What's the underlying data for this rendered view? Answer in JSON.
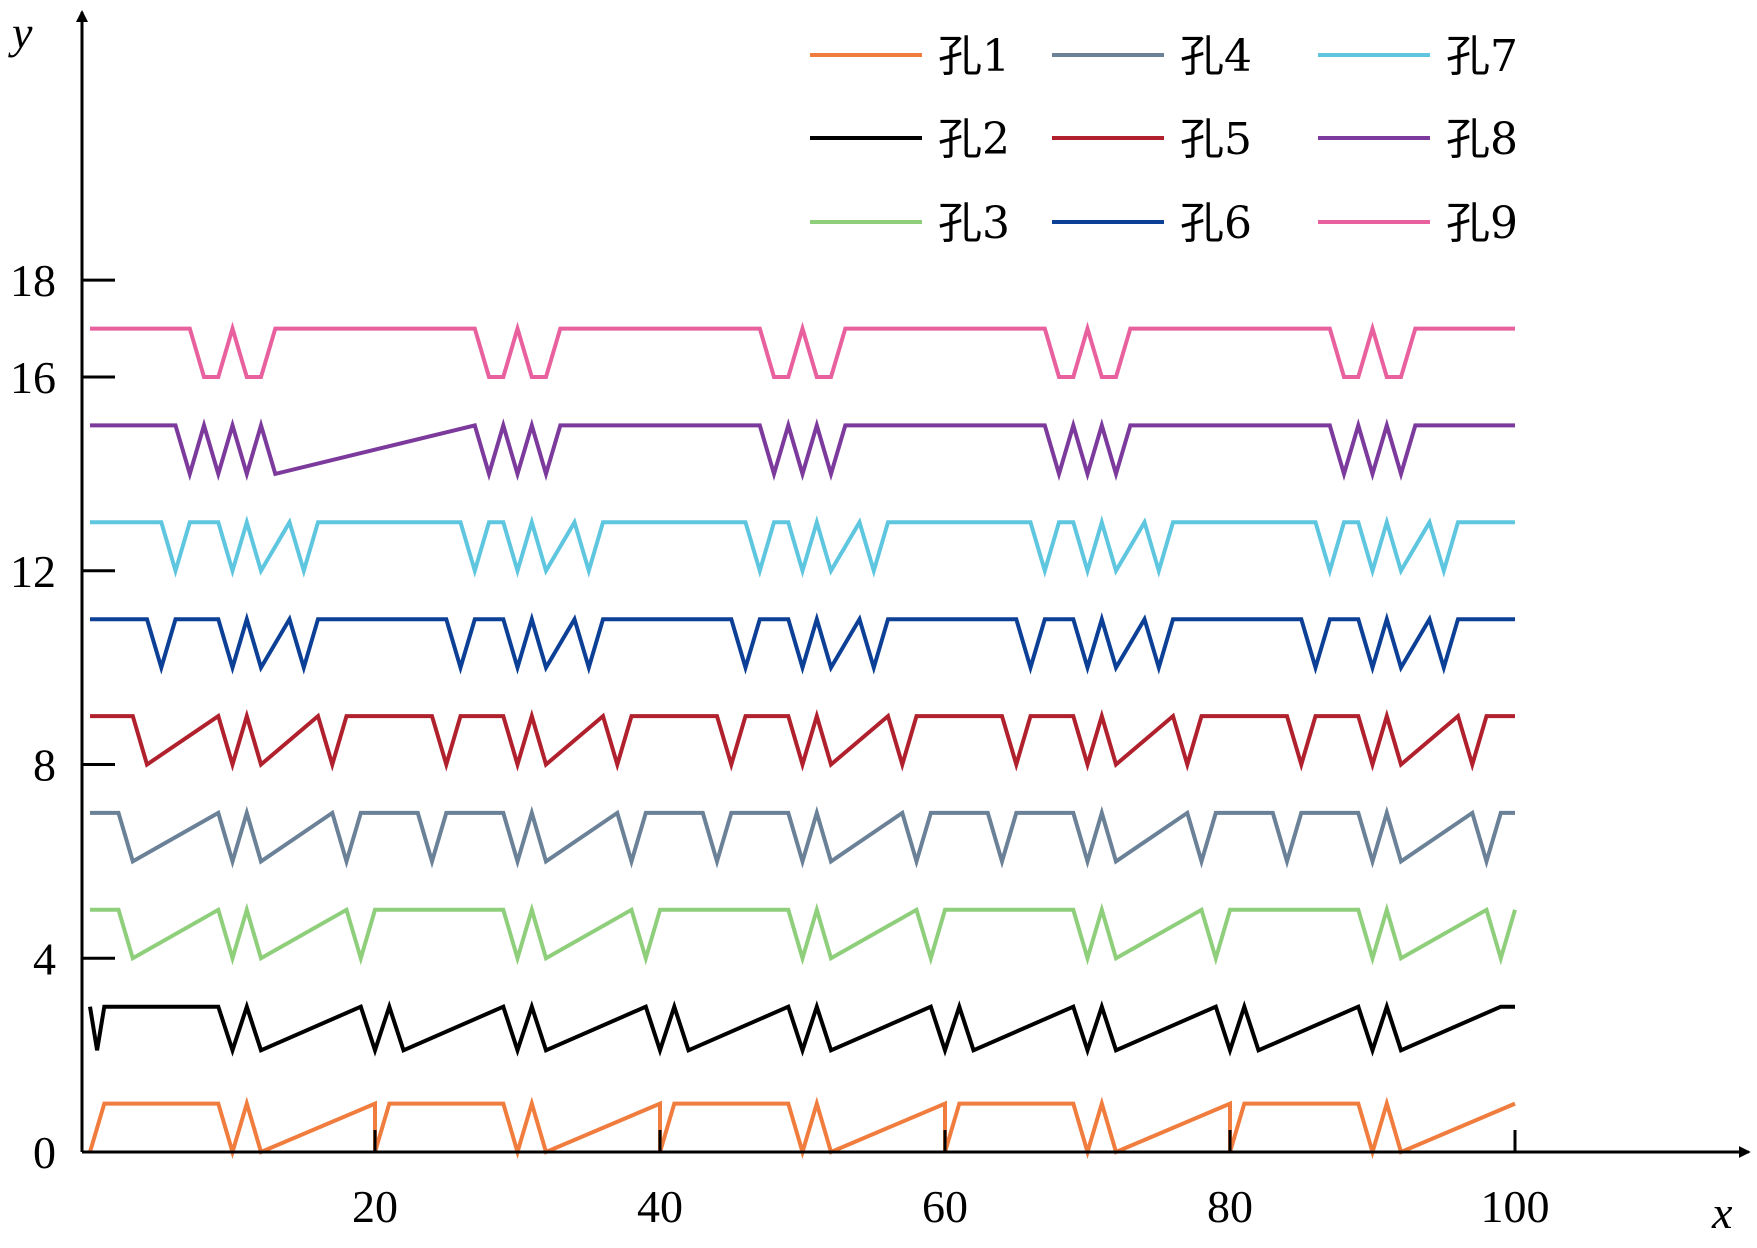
{
  "chart_data": {
    "type": "line",
    "title": "",
    "xlabel": "x",
    "ylabel": "y",
    "xlim": [
      0,
      115
    ],
    "ylim": [
      0,
      21
    ],
    "x_ticks": [
      20,
      40,
      60,
      80,
      100
    ],
    "y_ticks": [
      0,
      4,
      8,
      12,
      16,
      18
    ],
    "x_tick_labels": [
      "20",
      "40",
      "60",
      "80",
      "100"
    ],
    "y_tick_labels": [
      "0",
      "4",
      "8",
      "12",
      "16",
      "18"
    ],
    "grid": false,
    "legend_position": "top-right",
    "series": [
      {
        "name": "孔1",
        "color": "#f07c3e",
        "x": [
          0,
          1,
          9,
          10,
          11,
          12,
          20,
          20,
          21,
          29,
          30,
          31,
          32,
          40,
          40,
          41,
          49,
          50,
          51,
          52,
          60,
          60,
          61,
          69,
          70,
          71,
          72,
          80,
          80,
          81,
          89,
          90,
          91,
          92,
          100
        ],
        "y": [
          0,
          1,
          1,
          0,
          1,
          0,
          1,
          0,
          1,
          1,
          0,
          1,
          0,
          1,
          0,
          1,
          1,
          0,
          1,
          0,
          1,
          0,
          1,
          1,
          0,
          1,
          0,
          1,
          0,
          1,
          1,
          0,
          1,
          0,
          1
        ]
      },
      {
        "name": "孔2",
        "color": "#000000",
        "x": [
          0,
          0.5,
          1,
          9,
          10,
          11,
          12,
          19,
          20,
          21,
          22,
          29,
          30,
          31,
          32,
          39,
          40,
          41,
          42,
          49,
          50,
          51,
          52,
          59,
          60,
          61,
          62,
          69,
          70,
          71,
          72,
          79,
          80,
          81,
          82,
          89,
          90,
          91,
          92,
          99,
          100
        ],
        "y": [
          3,
          2.1,
          3,
          3,
          2.1,
          3,
          2.1,
          3,
          2.1,
          3,
          2.1,
          3,
          2.1,
          3,
          2.1,
          3,
          2.1,
          3,
          2.1,
          3,
          2.1,
          3,
          2.1,
          3,
          2.1,
          3,
          2.1,
          3,
          2.1,
          3,
          2.1,
          3,
          2.1,
          3,
          2.1,
          3,
          2.1,
          3,
          2.1,
          3,
          3
        ]
      },
      {
        "name": "孔3",
        "color": "#8fcf7c",
        "x": [
          0,
          2,
          3,
          9,
          10,
          11,
          12,
          18,
          19,
          20,
          21,
          29,
          30,
          31,
          32,
          38,
          39,
          40,
          41,
          49,
          50,
          51,
          52,
          58,
          59,
          60,
          61,
          69,
          70,
          71,
          72,
          78,
          79,
          80,
          81,
          89,
          90,
          91,
          92,
          98,
          99,
          100
        ],
        "y": [
          5,
          5,
          4,
          5,
          4,
          5,
          4,
          5,
          4,
          5,
          5,
          5,
          4,
          5,
          4,
          5,
          4,
          5,
          5,
          5,
          4,
          5,
          4,
          5,
          4,
          5,
          5,
          5,
          4,
          5,
          4,
          5,
          4,
          5,
          5,
          5,
          4,
          5,
          4,
          5,
          4,
          5
        ]
      },
      {
        "name": "孔4",
        "color": "#6a8197",
        "x": [
          0,
          2,
          3,
          9,
          10,
          11,
          12,
          17,
          18,
          19,
          23,
          24,
          25,
          29,
          30,
          31,
          32,
          37,
          38,
          39,
          43,
          44,
          45,
          49,
          50,
          51,
          52,
          57,
          58,
          59,
          63,
          64,
          65,
          69,
          70,
          71,
          72,
          77,
          78,
          79,
          83,
          84,
          85,
          89,
          90,
          91,
          92,
          97,
          98,
          99,
          100
        ],
        "y": [
          7,
          7,
          6,
          7,
          6,
          7,
          6,
          7,
          6,
          7,
          7,
          6,
          7,
          7,
          6,
          7,
          6,
          7,
          6,
          7,
          7,
          6,
          7,
          7,
          6,
          7,
          6,
          7,
          6,
          7,
          7,
          6,
          7,
          7,
          6,
          7,
          6,
          7,
          6,
          7,
          7,
          6,
          7,
          7,
          6,
          7,
          6,
          7,
          6,
          7,
          7
        ]
      },
      {
        "name": "孔5",
        "color": "#b0202d",
        "x": [
          0,
          3,
          4,
          9,
          10,
          11,
          12,
          16,
          17,
          18,
          24,
          25,
          26,
          29,
          30,
          31,
          32,
          36,
          37,
          38,
          44,
          45,
          46,
          49,
          50,
          51,
          52,
          56,
          57,
          58,
          64,
          65,
          66,
          69,
          70,
          71,
          72,
          76,
          77,
          78,
          84,
          85,
          86,
          89,
          90,
          91,
          92,
          96,
          97,
          98,
          100
        ],
        "y": [
          9,
          9,
          8,
          9,
          8,
          9,
          8,
          9,
          8,
          9,
          9,
          8,
          9,
          9,
          8,
          9,
          8,
          9,
          8,
          9,
          9,
          8,
          9,
          9,
          8,
          9,
          8,
          9,
          8,
          9,
          9,
          8,
          9,
          9,
          8,
          9,
          8,
          9,
          8,
          9,
          9,
          8,
          9,
          9,
          8,
          9,
          8,
          9,
          8,
          9,
          9
        ]
      },
      {
        "name": "孔6",
        "color": "#0c3f96",
        "x": [
          0,
          4,
          5,
          6,
          9,
          10,
          11,
          12,
          14,
          15,
          16,
          25,
          26,
          27,
          29,
          30,
          31,
          32,
          34,
          35,
          36,
          45,
          46,
          47,
          49,
          50,
          51,
          52,
          54,
          55,
          56,
          65,
          66,
          67,
          69,
          70,
          71,
          72,
          74,
          75,
          76,
          85,
          86,
          87,
          89,
          90,
          91,
          92,
          94,
          95,
          96,
          100
        ],
        "y": [
          11,
          11,
          10,
          11,
          11,
          10,
          11,
          10,
          11,
          10,
          11,
          11,
          10,
          11,
          11,
          10,
          11,
          10,
          11,
          10,
          11,
          11,
          10,
          11,
          11,
          10,
          11,
          10,
          11,
          10,
          11,
          11,
          10,
          11,
          11,
          10,
          11,
          10,
          11,
          10,
          11,
          11,
          10,
          11,
          11,
          10,
          11,
          10,
          11,
          10,
          11,
          11
        ]
      },
      {
        "name": "孔7",
        "color": "#5fc6e0",
        "x": [
          0,
          5,
          6,
          7,
          9,
          10,
          11,
          12,
          14,
          15,
          16,
          26,
          27,
          28,
          29,
          30,
          31,
          32,
          34,
          35,
          36,
          46,
          47,
          48,
          49,
          50,
          51,
          52,
          54,
          55,
          56,
          66,
          67,
          68,
          69,
          70,
          71,
          72,
          74,
          75,
          76,
          86,
          87,
          88,
          89,
          90,
          91,
          92,
          94,
          95,
          96,
          100
        ],
        "y": [
          13,
          13,
          12,
          13,
          13,
          12,
          13,
          12,
          13,
          12,
          13,
          13,
          12,
          13,
          13,
          12,
          13,
          12,
          13,
          12,
          13,
          13,
          12,
          13,
          13,
          12,
          13,
          12,
          13,
          12,
          13,
          13,
          12,
          13,
          13,
          12,
          13,
          12,
          13,
          12,
          13,
          13,
          12,
          13,
          13,
          12,
          13,
          12,
          13,
          12,
          13,
          13
        ]
      },
      {
        "name": "孔8",
        "color": "#7c3a9c",
        "x": [
          0,
          6,
          7,
          8,
          9,
          10,
          11,
          12,
          13,
          27,
          28,
          29,
          30,
          31,
          32,
          33,
          47,
          48,
          49,
          50,
          51,
          52,
          53,
          67,
          68,
          69,
          70,
          71,
          72,
          73,
          87,
          88,
          89,
          90,
          91,
          92,
          93,
          100
        ],
        "y": [
          15,
          15,
          14,
          15,
          14,
          15,
          14,
          15,
          14,
          15,
          14,
          15,
          14,
          15,
          14,
          15,
          15,
          14,
          15,
          14,
          15,
          14,
          15,
          15,
          14,
          15,
          14,
          15,
          14,
          15,
          15,
          14,
          15,
          14,
          15,
          14,
          15,
          15
        ]
      },
      {
        "name": "孔9",
        "color": "#e8619e",
        "x": [
          0,
          7,
          8,
          9,
          10,
          11,
          12,
          13,
          27,
          28,
          29,
          30,
          31,
          32,
          33,
          47,
          48,
          49,
          50,
          51,
          52,
          53,
          67,
          68,
          69,
          70,
          71,
          72,
          73,
          87,
          88,
          89,
          90,
          91,
          92,
          93,
          100
        ],
        "y": [
          17,
          17,
          16,
          16,
          17,
          16,
          16,
          17,
          17,
          16,
          16,
          17,
          16,
          16,
          17,
          17,
          16,
          16,
          17,
          16,
          16,
          17,
          17,
          16,
          16,
          17,
          16,
          16,
          17,
          17,
          16,
          16,
          17,
          16,
          16,
          17,
          17
        ]
      }
    ]
  }
}
